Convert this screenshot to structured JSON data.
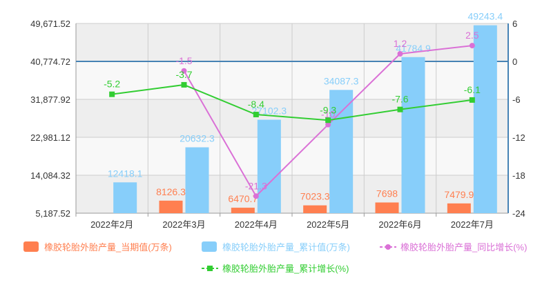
{
  "chart_data": {
    "type": "bar",
    "categories": [
      "2022年2月",
      "2022年3月",
      "2022年4月",
      "2022年5月",
      "2022年6月",
      "2022年7月"
    ],
    "y_left": {
      "ticks": [
        "49,671.52",
        "40,774.72",
        "31,877.92",
        "22,981.12",
        "14,084.32",
        "5,187.52"
      ],
      "range": [
        5187.52,
        49671.52
      ]
    },
    "y_right": {
      "ticks": [
        "6",
        "0",
        "-6",
        "-12",
        "-18",
        "-24"
      ],
      "range": [
        -24,
        6
      ]
    },
    "series": [
      {
        "name": "橡胶轮胎外胎产量_当期值(万条)",
        "kind": "bar",
        "axis": "left",
        "color": "#ff7f50",
        "label_color": "#ff7f50",
        "values": [
          null,
          8126.3,
          6470.7,
          7023.3,
          7698,
          7479.9
        ],
        "labels": [
          "",
          "8126.3",
          "6470.7",
          "7023.3",
          "7698",
          "7479.9"
        ]
      },
      {
        "name": "橡胶轮胎外胎产量_累计值(万条)",
        "kind": "bar",
        "axis": "left",
        "color": "#87cefa",
        "label_color": "#87cefa",
        "values": [
          12418.1,
          20632.3,
          27102.3,
          34087.3,
          41784.9,
          49243.4
        ],
        "labels": [
          "12418.1",
          "20632.3",
          "27102.3",
          "34087.3",
          "41784.9",
          "49243.4"
        ]
      },
      {
        "name": "橡胶轮胎外胎产量_同比增长(%)",
        "kind": "line",
        "axis": "right",
        "color": "#da70d6",
        "label_color": "#da70d6",
        "values": [
          null,
          -1.5,
          -21.3,
          -10,
          1.2,
          2.5
        ],
        "labels": [
          "",
          "-1.5",
          "-21.3",
          "-10",
          "1.2",
          "2.5"
        ]
      },
      {
        "name": "橡胶轮胎外胎产量_累计增长(%)",
        "kind": "line",
        "axis": "right",
        "color": "#32cd32",
        "label_color": "#32cd32",
        "values": [
          -5.2,
          -3.7,
          -8.4,
          -9.3,
          -7.6,
          -6.1
        ],
        "labels": [
          "-5.2",
          "-3.7",
          "-8.4",
          "-9.3",
          "-7.6",
          "-6.1"
        ]
      }
    ],
    "grid": true,
    "legend": "bottom",
    "zero_line_color": "#4682b4"
  }
}
